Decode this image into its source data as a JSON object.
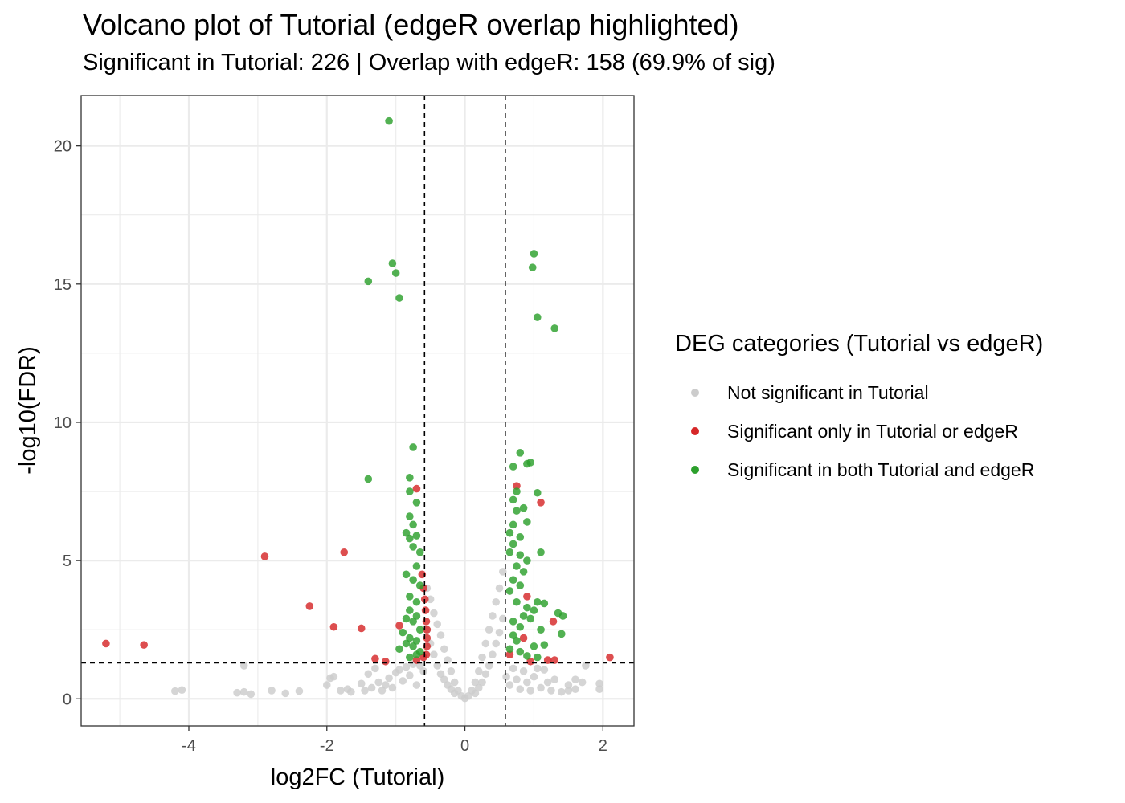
{
  "chart_data": {
    "type": "scatter",
    "title": "Volcano plot of Tutorial (edgeR overlap highlighted)",
    "subtitle": "Significant in Tutorial: 226 | Overlap with edgeR: 158 (69.9% of sig)",
    "xlabel": "log2FC (Tutorial)",
    "ylabel": "-log10(FDR)",
    "xlim": [
      -5.56,
      2.45
    ],
    "ylim": [
      -0.98,
      21.82
    ],
    "x_ticks": [
      -4,
      -2,
      0,
      2
    ],
    "x_tick_labels": [
      "-4",
      "-2",
      "0",
      "2"
    ],
    "y_ticks": [
      0,
      5,
      10,
      15,
      20
    ],
    "y_tick_labels": [
      "0",
      "5",
      "10",
      "15",
      "20"
    ],
    "grid": true,
    "legend_position": "right",
    "legend_title": "DEG categories (Tutorial vs edgeR)",
    "threshold_lines": {
      "vertical_x": [
        -0.585,
        0.585
      ],
      "horizontal_y": 1.3,
      "style": "dashed"
    },
    "colors": {
      "not_significant": "#cccccc",
      "significant_only": "#d62728",
      "significant_both": "#2ca02c"
    },
    "series": [
      {
        "name": "Not significant in Tutorial",
        "color": "#cccccc",
        "points": [
          [
            -4.2,
            0.28
          ],
          [
            -4.1,
            0.32
          ],
          [
            -3.3,
            0.22
          ],
          [
            -3.2,
            1.2
          ],
          [
            -3.2,
            0.25
          ],
          [
            -3.1,
            0.17
          ],
          [
            -2.8,
            0.3
          ],
          [
            -2.6,
            0.2
          ],
          [
            -2.4,
            0.28
          ],
          [
            -2.0,
            0.5
          ],
          [
            -1.95,
            0.75
          ],
          [
            -1.9,
            0.8
          ],
          [
            -1.8,
            0.3
          ],
          [
            -1.7,
            0.35
          ],
          [
            -1.65,
            0.25
          ],
          [
            -1.5,
            0.55
          ],
          [
            -1.45,
            0.3
          ],
          [
            -1.4,
            0.9
          ],
          [
            -1.35,
            0.4
          ],
          [
            -1.3,
            1.1
          ],
          [
            -1.25,
            0.6
          ],
          [
            -1.2,
            0.3
          ],
          [
            -1.15,
            0.5
          ],
          [
            -1.1,
            0.75
          ],
          [
            -1.05,
            0.4
          ],
          [
            -1.0,
            0.95
          ],
          [
            -0.95,
            1.05
          ],
          [
            -0.9,
            0.65
          ],
          [
            -0.85,
            1.15
          ],
          [
            -0.8,
            0.85
          ],
          [
            -0.75,
            1.25
          ],
          [
            -0.7,
            0.5
          ],
          [
            -0.65,
            1.2
          ],
          [
            -0.6,
            1.0
          ],
          [
            -0.55,
            4.0
          ],
          [
            -0.5,
            3.6
          ],
          [
            -0.45,
            3.1
          ],
          [
            -0.4,
            2.7
          ],
          [
            -0.35,
            2.3
          ],
          [
            -0.3,
            1.8
          ],
          [
            -0.25,
            1.4
          ],
          [
            -0.2,
            1.0
          ],
          [
            -0.15,
            0.6
          ],
          [
            -0.1,
            0.3
          ],
          [
            -0.05,
            0.1
          ],
          [
            0.0,
            0.02
          ],
          [
            -0.55,
            2.5
          ],
          [
            -0.5,
            2.0
          ],
          [
            -0.45,
            1.6
          ],
          [
            -0.4,
            1.2
          ],
          [
            -0.35,
            0.9
          ],
          [
            -0.3,
            0.7
          ],
          [
            -0.25,
            0.5
          ],
          [
            -0.2,
            0.35
          ],
          [
            -0.15,
            0.2
          ],
          [
            0.05,
            0.1
          ],
          [
            0.1,
            0.3
          ],
          [
            0.15,
            0.6
          ],
          [
            0.2,
            1.0
          ],
          [
            0.25,
            1.5
          ],
          [
            0.3,
            2.0
          ],
          [
            0.35,
            2.5
          ],
          [
            0.4,
            3.0
          ],
          [
            0.45,
            3.5
          ],
          [
            0.5,
            4.0
          ],
          [
            0.55,
            4.6
          ],
          [
            0.15,
            0.2
          ],
          [
            0.2,
            0.4
          ],
          [
            0.25,
            0.6
          ],
          [
            0.3,
            0.9
          ],
          [
            0.35,
            1.2
          ],
          [
            0.4,
            1.6
          ],
          [
            0.45,
            2.0
          ],
          [
            0.5,
            2.4
          ],
          [
            0.55,
            2.9
          ],
          [
            0.6,
            0.8
          ],
          [
            0.65,
            0.5
          ],
          [
            0.7,
            1.1
          ],
          [
            0.75,
            0.7
          ],
          [
            0.8,
            0.35
          ],
          [
            0.85,
            1.0
          ],
          [
            0.9,
            0.6
          ],
          [
            0.95,
            0.3
          ],
          [
            1.0,
            0.8
          ],
          [
            1.05,
            1.1
          ],
          [
            1.1,
            0.4
          ],
          [
            1.2,
            0.6
          ],
          [
            1.25,
            0.3
          ],
          [
            1.3,
            0.7
          ],
          [
            1.4,
            0.25
          ],
          [
            1.5,
            0.5
          ],
          [
            1.6,
            0.35
          ],
          [
            1.6,
            0.7
          ],
          [
            1.7,
            0.6
          ],
          [
            1.75,
            1.2
          ],
          [
            1.95,
            0.35
          ],
          [
            1.95,
            0.55
          ],
          [
            1.5,
            0.3
          ],
          [
            1.15,
            1.05
          ]
        ]
      },
      {
        "name": "Significant only in Tutorial or edgeR",
        "color": "#d62728",
        "points": [
          [
            -5.2,
            2.0
          ],
          [
            -4.65,
            1.95
          ],
          [
            -2.9,
            5.15
          ],
          [
            -2.25,
            3.35
          ],
          [
            -1.9,
            2.6
          ],
          [
            -1.75,
            5.3
          ],
          [
            -1.5,
            2.55
          ],
          [
            -1.3,
            1.45
          ],
          [
            -1.15,
            1.35
          ],
          [
            -0.95,
            2.65
          ],
          [
            -0.7,
            7.6
          ],
          [
            -0.62,
            4.5
          ],
          [
            -0.6,
            4.0
          ],
          [
            -0.58,
            3.6
          ],
          [
            -0.57,
            3.2
          ],
          [
            -0.56,
            2.8
          ],
          [
            -0.55,
            2.5
          ],
          [
            -0.55,
            2.2
          ],
          [
            -0.55,
            1.9
          ],
          [
            -0.56,
            1.6
          ],
          [
            -0.6,
            1.5
          ],
          [
            -0.7,
            1.4
          ],
          [
            0.65,
            1.6
          ],
          [
            0.75,
            7.7
          ],
          [
            0.85,
            2.2
          ],
          [
            0.9,
            3.7
          ],
          [
            0.95,
            1.35
          ],
          [
            1.1,
            7.1
          ],
          [
            1.2,
            1.4
          ],
          [
            1.28,
            2.8
          ],
          [
            1.3,
            1.4
          ],
          [
            2.1,
            1.5
          ]
        ]
      },
      {
        "name": "Significant in both Tutorial and edgeR",
        "color": "#2ca02c",
        "points": [
          [
            -1.1,
            20.9
          ],
          [
            -1.05,
            15.75
          ],
          [
            -1.0,
            15.4
          ],
          [
            -1.4,
            15.1
          ],
          [
            -0.95,
            14.5
          ],
          [
            -1.4,
            7.95
          ],
          [
            -0.75,
            9.1
          ],
          [
            -0.8,
            8.0
          ],
          [
            -0.8,
            7.5
          ],
          [
            -0.7,
            7.1
          ],
          [
            -0.8,
            6.6
          ],
          [
            -0.75,
            6.3
          ],
          [
            -0.85,
            6.0
          ],
          [
            -0.8,
            5.8
          ],
          [
            -0.7,
            5.9
          ],
          [
            -0.75,
            5.5
          ],
          [
            -0.65,
            5.3
          ],
          [
            -0.7,
            4.8
          ],
          [
            -0.85,
            4.5
          ],
          [
            -0.75,
            4.3
          ],
          [
            -0.65,
            4.1
          ],
          [
            -0.8,
            3.7
          ],
          [
            -0.7,
            3.5
          ],
          [
            -0.8,
            3.2
          ],
          [
            -0.7,
            3.0
          ],
          [
            -0.85,
            2.9
          ],
          [
            -0.75,
            2.8
          ],
          [
            -0.65,
            2.5
          ],
          [
            -0.9,
            2.4
          ],
          [
            -0.8,
            2.2
          ],
          [
            -0.7,
            2.1
          ],
          [
            -0.85,
            2.0
          ],
          [
            -0.75,
            1.9
          ],
          [
            -0.65,
            1.7
          ],
          [
            -0.95,
            1.8
          ],
          [
            -0.8,
            1.5
          ],
          [
            -0.7,
            1.6
          ],
          [
            1.0,
            16.1
          ],
          [
            0.98,
            15.6
          ],
          [
            1.05,
            13.8
          ],
          [
            1.3,
            13.4
          ],
          [
            0.8,
            8.9
          ],
          [
            0.7,
            8.4
          ],
          [
            0.9,
            8.5
          ],
          [
            0.95,
            8.55
          ],
          [
            0.75,
            7.5
          ],
          [
            1.05,
            7.45
          ],
          [
            0.7,
            7.2
          ],
          [
            0.85,
            6.9
          ],
          [
            0.75,
            6.8
          ],
          [
            0.9,
            6.4
          ],
          [
            0.7,
            6.3
          ],
          [
            0.65,
            6.0
          ],
          [
            0.8,
            5.85
          ],
          [
            0.7,
            5.6
          ],
          [
            0.65,
            5.3
          ],
          [
            0.8,
            5.2
          ],
          [
            1.1,
            5.3
          ],
          [
            0.9,
            5.0
          ],
          [
            0.75,
            4.8
          ],
          [
            0.85,
            4.6
          ],
          [
            0.7,
            4.3
          ],
          [
            0.8,
            4.1
          ],
          [
            0.65,
            3.9
          ],
          [
            0.75,
            3.5
          ],
          [
            0.9,
            3.3
          ],
          [
            1.0,
            3.2
          ],
          [
            1.05,
            3.5
          ],
          [
            1.15,
            3.45
          ],
          [
            1.35,
            3.1
          ],
          [
            1.42,
            3.0
          ],
          [
            0.85,
            3.0
          ],
          [
            0.95,
            2.9
          ],
          [
            0.7,
            2.8
          ],
          [
            0.8,
            2.6
          ],
          [
            1.1,
            2.5
          ],
          [
            0.7,
            2.3
          ],
          [
            0.75,
            2.1
          ],
          [
            1.4,
            2.35
          ],
          [
            1.15,
            1.95
          ],
          [
            1.0,
            1.9
          ],
          [
            0.65,
            1.8
          ],
          [
            0.8,
            1.7
          ],
          [
            0.9,
            1.55
          ],
          [
            1.05,
            1.5
          ]
        ]
      }
    ]
  }
}
